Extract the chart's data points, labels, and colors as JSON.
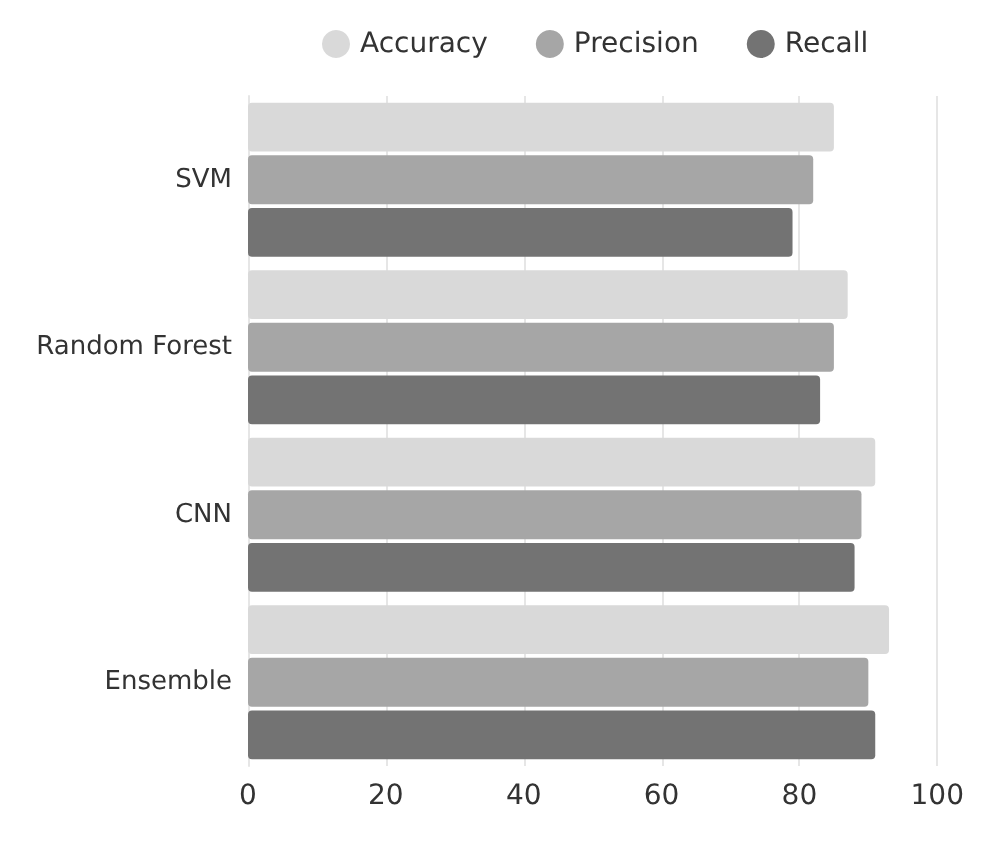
{
  "chart_data": {
    "type": "bar",
    "orientation": "horizontal",
    "categories": [
      "SVM",
      "Random Forest",
      "CNN",
      "Ensemble"
    ],
    "series": [
      {
        "name": "Accuracy",
        "color": "#d9d9d9",
        "values": [
          85,
          87,
          91,
          93
        ]
      },
      {
        "name": "Precision",
        "color": "#a6a6a6",
        "values": [
          82,
          85,
          89,
          90
        ]
      },
      {
        "name": "Recall",
        "color": "#737373",
        "values": [
          79,
          83,
          88,
          91
        ]
      }
    ],
    "xlim": [
      0,
      100
    ],
    "xticks": [
      0,
      20,
      40,
      60,
      80,
      100
    ],
    "grid": "x",
    "legend": "top"
  }
}
